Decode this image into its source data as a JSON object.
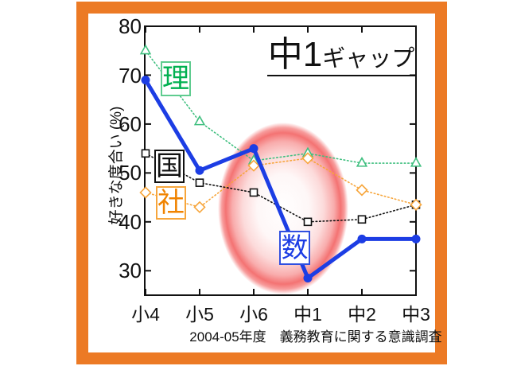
{
  "frame_color": "#EC7A25",
  "title": {
    "main": "中1",
    "suffix": "ギャップ"
  },
  "caption": "2004-05年度　義務教育に関する意識調査",
  "y_axis": {
    "title": "好きな度合い (%)",
    "ticks": [
      "80",
      "70",
      "60",
      "50",
      "40",
      "30"
    ]
  },
  "x_axis": {
    "categories": [
      "小4",
      "小5",
      "小6",
      "中1",
      "中2",
      "中3"
    ]
  },
  "chart_data": {
    "type": "line",
    "title": "中1ギャップ",
    "ylabel": "好きな度合い (%)",
    "ylim": [
      25,
      80
    ],
    "grid": false,
    "legend_position": "inline-labels",
    "categories": [
      "小4",
      "小5",
      "小6",
      "中1",
      "中2",
      "中3"
    ],
    "series": [
      {
        "name": "理",
        "subject": "science",
        "color": "#3FBF7F",
        "marker": "triangle",
        "line": "dotted",
        "values": [
          75,
          60.5,
          52.5,
          54,
          52,
          52
        ]
      },
      {
        "name": "国",
        "subject": "japanese",
        "color": "#111111",
        "marker": "square",
        "line": "dotted",
        "values": [
          54,
          48,
          46,
          40,
          40.5,
          43.5
        ]
      },
      {
        "name": "社",
        "subject": "social-studies",
        "color": "#F7A63C",
        "marker": "diamond",
        "line": "dotted",
        "values": [
          46,
          43,
          51.5,
          53,
          46.5,
          43.5
        ]
      },
      {
        "name": "数",
        "subject": "math",
        "color": "#1C3DE4",
        "marker": "circle",
        "line": "solid",
        "values": [
          69,
          50.5,
          55,
          28.5,
          36.5,
          36.5
        ]
      }
    ],
    "annotation": "soft red ellipse highlighting the drop between 小6 and 中1",
    "highlight_color": "#F25A5A"
  }
}
